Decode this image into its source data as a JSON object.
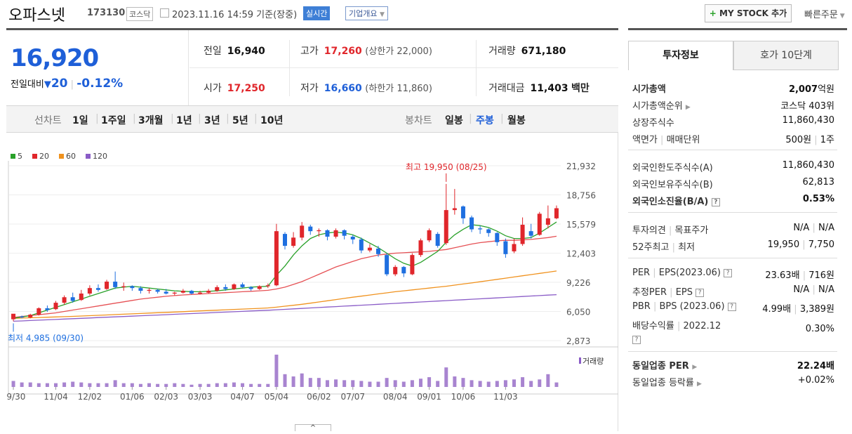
{
  "header": {
    "name": "오파스넷",
    "code": "173130",
    "market_badge": "코스닥",
    "datetime": "2023.11.16 14:59",
    "basis": "기준(장중)",
    "realtime_label": "실시간",
    "corp_info_label": "기업개요",
    "mystock_label": "MY STOCK 추가",
    "quick_order_label": "빠른주문"
  },
  "price": {
    "current": "16,920",
    "change_label": "전일대비",
    "change": "20",
    "change_pct": "-0.12%",
    "direction": "down"
  },
  "stats": {
    "prev_close_label": "전일",
    "prev_close": "16,940",
    "high_label": "고가",
    "high": "17,260",
    "upper_limit": "(상한가 22,000)",
    "volume_label": "거래량",
    "volume": "671,180",
    "open_label": "시가",
    "open": "17,250",
    "low_label": "저가",
    "low": "16,660",
    "lower_limit": "(하한가 11,860)",
    "amount_label": "거래대금",
    "amount": "11,403",
    "amount_unit": "백만"
  },
  "toolbar": {
    "line_chart_label": "선차트",
    "periods": [
      "1일",
      "1주일",
      "3개월",
      "1년",
      "3년",
      "5년",
      "10년"
    ],
    "candle_label": "봉차트",
    "candle_periods": [
      "일봉",
      "주봉",
      "월봉"
    ],
    "candle_selected": "주봉"
  },
  "chart_data": {
    "type": "candlestick",
    "legend": [
      {
        "name": "5",
        "color": "#2aa12a"
      },
      {
        "name": "20",
        "color": "#e0262b"
      },
      {
        "name": "60",
        "color": "#f0921e"
      },
      {
        "name": "120",
        "color": "#8a5cc7"
      }
    ],
    "y_ticks": [
      "21,932",
      "18,756",
      "15,579",
      "12,403",
      "9,226",
      "6,050",
      "2,873"
    ],
    "ylim": [
      2873,
      21932
    ],
    "x_ticks": [
      "09/30",
      "11/04",
      "12/02",
      "01/06",
      "02/03",
      "03/03",
      "04/07",
      "05/04",
      "06/02",
      "07/07",
      "08/04",
      "09/01",
      "10/06",
      "11/03"
    ],
    "high_annotation": "최고 19,950 (08/25)",
    "low_annotation": "최저 4,985 (09/30)",
    "volume_label": "거래량",
    "candles": [
      [
        5200,
        5800,
        4985,
        5700
      ],
      [
        5500,
        5400,
        5300,
        5600
      ],
      [
        5400,
        5700,
        5300,
        5800
      ],
      [
        5700,
        6400,
        5600,
        6500
      ],
      [
        6400,
        6200,
        6000,
        6700
      ],
      [
        6300,
        7000,
        6200,
        7200
      ],
      [
        7000,
        7600,
        6800,
        7800
      ],
      [
        7600,
        7200,
        7000,
        8100
      ],
      [
        7300,
        8000,
        7200,
        8400
      ],
      [
        8000,
        8600,
        7800,
        8900
      ],
      [
        8600,
        8400,
        8200,
        9000
      ],
      [
        8500,
        9300,
        8400,
        9500
      ],
      [
        9300,
        8700,
        8500,
        10400
      ],
      [
        8700,
        8800,
        8300,
        9200
      ],
      [
        8800,
        8600,
        8300,
        8900
      ],
      [
        8600,
        8300,
        8000,
        8800
      ],
      [
        8300,
        8400,
        8000,
        8600
      ],
      [
        8400,
        8200,
        8000,
        8500
      ],
      [
        8200,
        8000,
        7900,
        8500
      ],
      [
        8000,
        8100,
        7800,
        8200
      ],
      [
        8100,
        8300,
        8000,
        8500
      ],
      [
        8300,
        8000,
        7900,
        8400
      ],
      [
        8000,
        8100,
        7900,
        8300
      ],
      [
        8100,
        8300,
        8000,
        8500
      ],
      [
        8300,
        8700,
        8200,
        8900
      ],
      [
        8700,
        8500,
        8300,
        9000
      ],
      [
        8500,
        9000,
        8400,
        9100
      ],
      [
        9000,
        8700,
        8600,
        9200
      ],
      [
        8700,
        8500,
        8300,
        8800
      ],
      [
        8500,
        8800,
        8400,
        8900
      ],
      [
        8800,
        8900,
        8600,
        9100
      ],
      [
        8900,
        14800,
        8800,
        15600
      ],
      [
        14500,
        13200,
        12800,
        14700
      ],
      [
        13200,
        14100,
        13000,
        14700
      ],
      [
        14100,
        15400,
        13800,
        15800
      ],
      [
        15300,
        14800,
        14400,
        15500
      ],
      [
        14800,
        14900,
        14200,
        15100
      ],
      [
        14900,
        14200,
        13800,
        15000
      ],
      [
        14200,
        14900,
        14000,
        15100
      ],
      [
        14900,
        14300,
        13900,
        15000
      ],
      [
        14200,
        13900,
        13400,
        14400
      ],
      [
        13900,
        12700,
        12400,
        14100
      ],
      [
        12700,
        13000,
        12500,
        13400
      ],
      [
        12900,
        12300,
        12000,
        13200
      ],
      [
        12200,
        10100,
        9900,
        12400
      ],
      [
        10100,
        10900,
        9900,
        11100
      ],
      [
        10900,
        10200,
        9800,
        11000
      ],
      [
        10100,
        12200,
        10000,
        12400
      ],
      [
        12200,
        13800,
        12000,
        14000
      ],
      [
        13800,
        14900,
        13600,
        15100
      ],
      [
        14500,
        13200,
        13000,
        14700
      ],
      [
        13500,
        17100,
        13300,
        19950
      ],
      [
        17100,
        17300,
        16600,
        19400
      ],
      [
        17500,
        16200,
        15600,
        17600
      ],
      [
        16300,
        15000,
        14700,
        16500
      ],
      [
        15100,
        15000,
        14500,
        15400
      ],
      [
        15000,
        14600,
        14200,
        15100
      ],
      [
        14600,
        13600,
        13200,
        14700
      ],
      [
        13700,
        12300,
        11900,
        14000
      ],
      [
        12600,
        13400,
        12400,
        14000
      ],
      [
        13400,
        15500,
        13200,
        16300
      ],
      [
        14800,
        14300,
        14000,
        15600
      ],
      [
        14400,
        16700,
        14300,
        16900
      ],
      [
        15500,
        16200,
        15100,
        17600
      ],
      [
        16200,
        17300,
        16100,
        17600
      ]
    ],
    "ma": {
      "ma5": [
        5300,
        5450,
        5600,
        5900,
        6200,
        6500,
        6800,
        7100,
        7400,
        7700,
        8000,
        8300,
        8600,
        8700,
        8800,
        8700,
        8600,
        8500,
        8400,
        8300,
        8250,
        8200,
        8200,
        8250,
        8300,
        8400,
        8500,
        8600,
        8700,
        8750,
        8800,
        10000,
        11000,
        12200,
        13200,
        14000,
        14400,
        14600,
        14700,
        14600,
        14400,
        14000,
        13500,
        13000,
        12400,
        11800,
        11300,
        11000,
        11400,
        12000,
        12600,
        13600,
        14400,
        15000,
        15500,
        15400,
        15200,
        14800,
        14300,
        14000,
        14000,
        14100,
        14600,
        15200,
        15800
      ],
      "ma20": [
        5400,
        5500,
        5600,
        5700,
        5800,
        5900,
        6050,
        6200,
        6350,
        6500,
        6650,
        6800,
        6950,
        7100,
        7250,
        7400,
        7500,
        7600,
        7700,
        7780,
        7850,
        7900,
        7950,
        8000,
        8050,
        8100,
        8150,
        8200,
        8250,
        8300,
        8350,
        8500,
        8700,
        9000,
        9300,
        9700,
        10100,
        10500,
        10900,
        11200,
        11500,
        11800,
        12000,
        12200,
        12300,
        12400,
        12450,
        12500,
        12550,
        12600,
        12700,
        12800,
        13000,
        13200,
        13400,
        13550,
        13650,
        13750,
        13800,
        13800,
        13850,
        13900,
        14000,
        14100,
        14250
      ],
      "ma60": [
        5300,
        5330,
        5360,
        5390,
        5420,
        5450,
        5480,
        5510,
        5550,
        5590,
        5630,
        5670,
        5710,
        5750,
        5790,
        5830,
        5870,
        5910,
        5950,
        5990,
        6030,
        6070,
        6110,
        6150,
        6190,
        6230,
        6270,
        6310,
        6350,
        6390,
        6430,
        6520,
        6620,
        6720,
        6830,
        6950,
        7080,
        7210,
        7340,
        7470,
        7600,
        7720,
        7840,
        7960,
        8080,
        8200,
        8300,
        8400,
        8500,
        8600,
        8700,
        8800,
        8920,
        9040,
        9160,
        9290,
        9420,
        9550,
        9680,
        9810,
        9940,
        10070,
        10200,
        10330,
        10460
      ],
      "ma120": [
        4985,
        5020,
        5060,
        5100,
        5140,
        5180,
        5220,
        5260,
        5300,
        5340,
        5380,
        5420,
        5460,
        5500,
        5540,
        5580,
        5620,
        5660,
        5700,
        5740,
        5780,
        5820,
        5860,
        5900,
        5940,
        5980,
        6020,
        6060,
        6100,
        6140,
        6180,
        6230,
        6280,
        6330,
        6380,
        6430,
        6480,
        6530,
        6580,
        6630,
        6680,
        6730,
        6780,
        6830,
        6880,
        6930,
        6980,
        7030,
        7080,
        7130,
        7180,
        7230,
        7280,
        7330,
        7380,
        7430,
        7480,
        7530,
        7580,
        7630,
        7680,
        7730,
        7780,
        7830,
        7880
      ]
    },
    "volumes": [
      8,
      6,
      6,
      5,
      5,
      5,
      6,
      7,
      6,
      5,
      5,
      5,
      9,
      5,
      5,
      4,
      5,
      4,
      4,
      5,
      4,
      3,
      4,
      4,
      5,
      5,
      6,
      5,
      4,
      4,
      4,
      43,
      17,
      14,
      18,
      12,
      12,
      9,
      10,
      9,
      9,
      8,
      7,
      7,
      12,
      9,
      7,
      9,
      11,
      13,
      8,
      26,
      14,
      12,
      9,
      8,
      7,
      8,
      9,
      10,
      13,
      8,
      10,
      17,
      6
    ]
  },
  "right_panel": {
    "tabs": [
      "투자정보",
      "호가 10단계"
    ],
    "rows1": [
      {
        "k": "시가총액",
        "v": "2,007",
        "unit": "억원"
      },
      {
        "k": "시가총액순위",
        "v": "코스닥 403위"
      },
      {
        "k": "상장주식수",
        "v": "11,860,430"
      },
      {
        "k": "액면가",
        "k2": "매매단위",
        "v": "500원",
        "v2": "1주"
      }
    ],
    "rows2": [
      {
        "k": "외국인한도주식수(A)",
        "v": "11,860,430"
      },
      {
        "k": "외국인보유주식수(B)",
        "v": "62,813"
      },
      {
        "k": "외국인소진율(B/A)",
        "v": "0.53%"
      }
    ],
    "rows3": [
      {
        "k": "투자의견",
        "k2": "목표주가",
        "v": "N/A",
        "v2": "N/A"
      },
      {
        "k": "52주최고",
        "k2": "최저",
        "v": "19,950",
        "v2": "7,750"
      }
    ],
    "rows4": [
      {
        "k": "PER",
        "k2": "EPS(2023.06)",
        "v": "23.63배",
        "v2": "716원"
      },
      {
        "k": "추정PER",
        "k2": "EPS",
        "v": "N/A",
        "v2": "N/A"
      },
      {
        "k": "PBR",
        "k2": "BPS (2023.06)",
        "v": "4.99배",
        "v2": "3,389원"
      },
      {
        "k": "배당수익률",
        "k2": "2022.12",
        "v": "0.30%"
      }
    ],
    "rows5": [
      {
        "k": "동일업종 PER",
        "v": "22.24배"
      },
      {
        "k": "동일업종 등락률",
        "v": "+0.02%"
      }
    ]
  }
}
